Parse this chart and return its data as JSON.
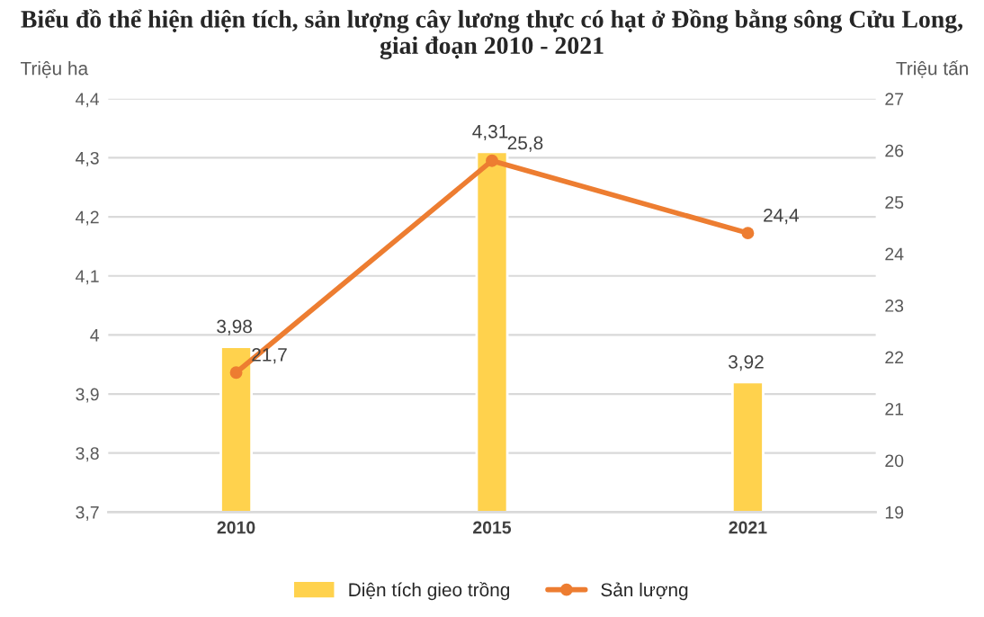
{
  "chart_data": {
    "type": "bar",
    "title": "Biểu đồ thể hiện diện tích, sản lượng cây lương thực có hạt ở Đồng bằng sông Cửu Long, giai đoạn 2010 - 2021",
    "ylabel": "Triệu ha",
    "y2label": "Triệu tấn",
    "categories": [
      "2010",
      "2015",
      "2021"
    ],
    "series": [
      {
        "name": "Diện tích gieo trồng",
        "color": "#ffd24d",
        "values": [
          3.98,
          4.31,
          3.92
        ],
        "value_labels": [
          "3,98",
          "4,31",
          "3,92"
        ]
      },
      {
        "name": "Sản lượng",
        "type": "line",
        "axis": "y2",
        "color": "#ed7d31",
        "marker": "circle",
        "values": [
          21.7,
          25.8,
          24.4
        ],
        "value_labels": [
          "21,7",
          "25,8",
          "24,4"
        ]
      }
    ],
    "ylim": [
      3.7,
      4.4
    ],
    "yticks": [
      {
        "value": 3.7,
        "label": "3,7"
      },
      {
        "value": 3.8,
        "label": "3,8"
      },
      {
        "value": 3.9,
        "label": "3,9"
      },
      4,
      {
        "value": 4.1,
        "label": "4,1"
      },
      {
        "value": 4.2,
        "label": "4,2"
      },
      {
        "value": 4.3,
        "label": "4,3"
      },
      {
        "value": 4.4,
        "label": "4,4"
      }
    ],
    "y2lim": [
      19,
      27
    ],
    "y2ticks": [
      19,
      20,
      21,
      22,
      23,
      24,
      25,
      26,
      27
    ],
    "grid": "y",
    "legend": "bottom"
  }
}
